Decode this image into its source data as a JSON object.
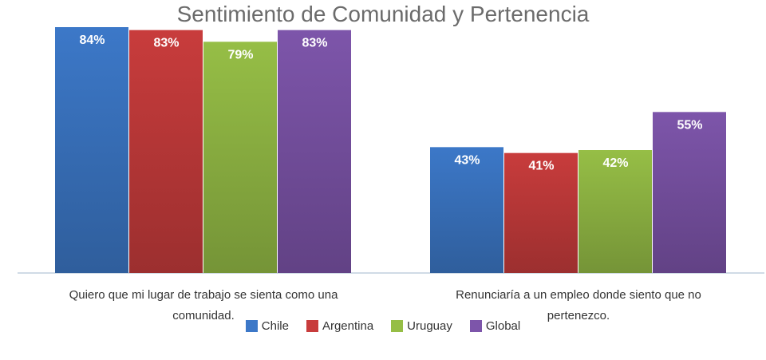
{
  "chart_data": {
    "type": "bar",
    "title": "Sentimiento de Comunidad y Pertenencia",
    "categories": [
      [
        "Quiero que mi lugar de trabajo se sienta como una",
        "comunidad."
      ],
      [
        "Renunciaría a un empleo donde siento que no",
        "pertenezco."
      ]
    ],
    "series": [
      {
        "name": "Chile",
        "color": "#3c78c8",
        "values": [
          84,
          43
        ],
        "labels": [
          "84%",
          "43%"
        ]
      },
      {
        "name": "Argentina",
        "color": "#c83c3c",
        "values": [
          83,
          41
        ],
        "labels": [
          "83%",
          "41%"
        ]
      },
      {
        "name": "Uruguay",
        "color": "#96be46",
        "values": [
          79,
          42
        ],
        "labels": [
          "79%",
          "42%"
        ]
      },
      {
        "name": "Global",
        "color": "#7d55aa",
        "values": [
          83,
          55
        ],
        "labels": [
          "83%",
          "55%"
        ]
      }
    ],
    "ylim": [
      0,
      90
    ],
    "grid": false,
    "legend_position": "bottom",
    "xlabel": "",
    "ylabel": ""
  }
}
